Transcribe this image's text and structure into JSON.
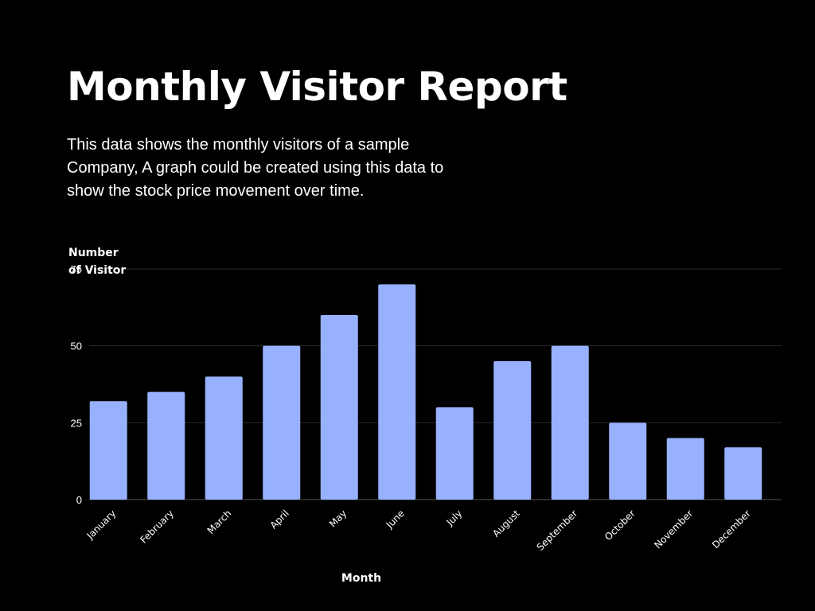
{
  "header": {
    "title": "Monthly Visitor Report",
    "description": "This data shows the monthly visitors of a sample Company, A graph could be created using this data to show the stock price movement over time."
  },
  "chart_data": {
    "type": "bar",
    "ylabel": "Number of Visitor",
    "xlabel": "Month",
    "categories": [
      "January",
      "February",
      "March",
      "April",
      "May",
      "June",
      "July",
      "August",
      "September",
      "October",
      "November",
      "December"
    ],
    "values": [
      32,
      35,
      40,
      50,
      60,
      70,
      30,
      45,
      50,
      25,
      20,
      17
    ],
    "ylim": [
      0,
      75
    ],
    "yticks": [
      0,
      25,
      50,
      75
    ],
    "grid": true,
    "bar_color": "#97b1ff",
    "background": "#000000",
    "grid_color": "#2a2a2a"
  }
}
